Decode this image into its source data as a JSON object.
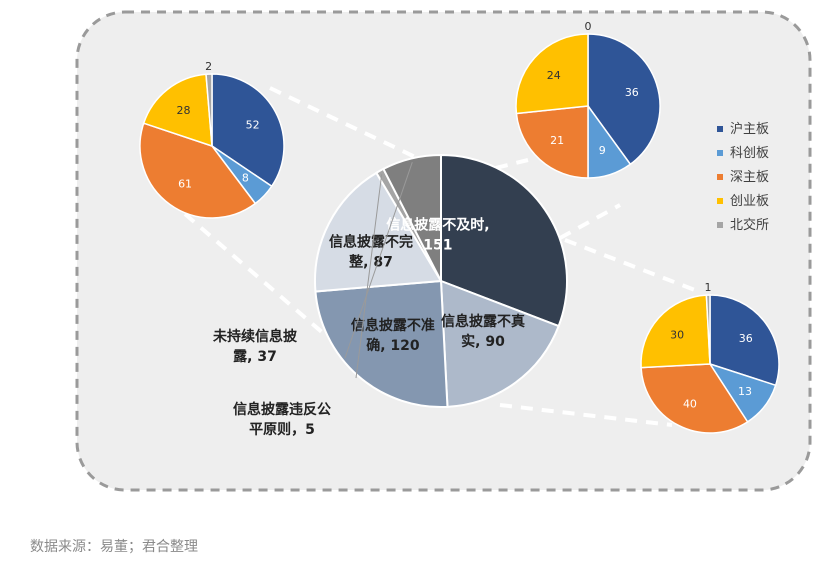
{
  "source_note": "数据来源：易董；君合整理",
  "colors": {
    "panel_bg": "#eeeeee",
    "panel_border": "#9a9a9a",
    "connector": "#ffffff",
    "slice_stroke": "#ffffff",
    "board_colors": [
      "#2f5597",
      "#5b9bd5",
      "#ed7d31",
      "#ffc000",
      "#a5a5a5"
    ],
    "main_colors": [
      "#333f50",
      "#adb9ca",
      "#8497b0",
      "#d6dce5",
      "#a5a5a5",
      "#7f7f7f"
    ]
  },
  "chart_data": [
    {
      "type": "pie",
      "role": "main",
      "categories": [
        "信息披露不及时",
        "信息披露不真实",
        "信息披露不准确",
        "信息披露不完整",
        "信息披露违反公平原则",
        "未持续信息披露"
      ],
      "values": [
        151,
        90,
        120,
        87,
        5,
        37
      ],
      "labels": [
        [
          "信息披露不及时,",
          "151"
        ],
        [
          "信息披露不真",
          "实, 90"
        ],
        [
          "信息披露不准",
          "确, 120"
        ],
        [
          "信息披露不完",
          "整, 87"
        ],
        [
          "信息披露违反公",
          "平原则，5"
        ],
        [
          "未持续信息披",
          "露, 37"
        ]
      ]
    },
    {
      "type": "pie",
      "role": "breakdown",
      "of": "信息披露不及时",
      "categories": [
        "沪主板",
        "科创板",
        "深主板",
        "创业板",
        "北交所"
      ],
      "values": [
        52,
        8,
        61,
        28,
        2
      ]
    },
    {
      "type": "pie",
      "role": "breakdown",
      "of": "信息披露不真实",
      "categories": [
        "沪主板",
        "科创板",
        "深主板",
        "创业板",
        "北交所"
      ],
      "values": [
        36,
        9,
        21,
        24,
        0
      ]
    },
    {
      "type": "pie",
      "role": "breakdown",
      "of": "信息披露不准确",
      "categories": [
        "沪主板",
        "科创板",
        "深主板",
        "创业板",
        "北交所"
      ],
      "values": [
        36,
        13,
        40,
        30,
        1
      ]
    }
  ],
  "legend": {
    "position": "right",
    "items": [
      "沪主板",
      "科创板",
      "深主板",
      "创业板",
      "北交所"
    ]
  }
}
